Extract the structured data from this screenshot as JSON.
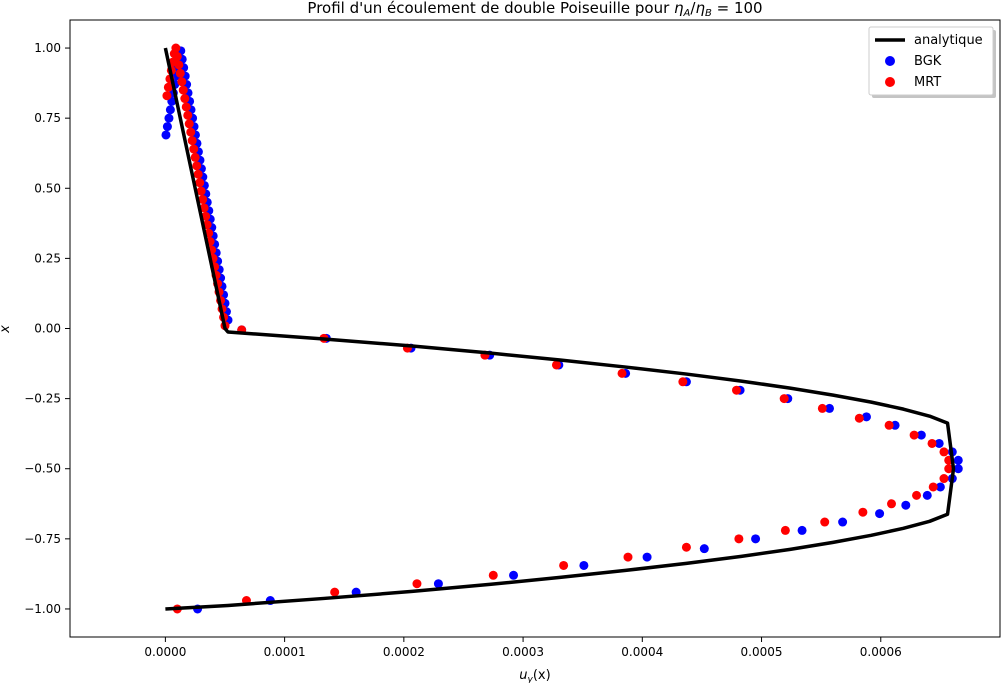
{
  "chart_data": {
    "type": "scatter",
    "title": "Profil d'un écoulement de double Poiseuille pour η_A/η_B = 100",
    "title_parts": {
      "prefix": "Profil d'un écoulement de double Poiseuille pour ",
      "eta": "η",
      "sub_a": "A",
      "slash": "/",
      "sub_b": "B",
      "suffix": " = 100"
    },
    "xlabel_parts": {
      "main": "u",
      "sub": "y",
      "suffix": "(x)"
    },
    "ylabel": "x",
    "xlim": [
      -8e-05,
      0.0007
    ],
    "ylim": [
      -1.1,
      1.1
    ],
    "xticks": [
      {
        "value": 0.0,
        "label": "0.0000"
      },
      {
        "value": 0.0001,
        "label": "0.0001"
      },
      {
        "value": 0.0002,
        "label": "0.0002"
      },
      {
        "value": 0.0003,
        "label": "0.0003"
      },
      {
        "value": 0.0004,
        "label": "0.0004"
      },
      {
        "value": 0.0005,
        "label": "0.0005"
      },
      {
        "value": 0.0006,
        "label": "0.0006"
      }
    ],
    "yticks": [
      {
        "value": 1.0,
        "label": "1.00"
      },
      {
        "value": 0.75,
        "label": "0.75"
      },
      {
        "value": 0.5,
        "label": "0.50"
      },
      {
        "value": 0.25,
        "label": "0.25"
      },
      {
        "value": 0.0,
        "label": "0.00"
      },
      {
        "value": -0.25,
        "label": "−0.25"
      },
      {
        "value": -0.5,
        "label": "−0.50"
      },
      {
        "value": -0.75,
        "label": "−0.75"
      },
      {
        "value": -1.0,
        "label": "−1.00"
      }
    ],
    "grid": false,
    "legend_position": "top-right",
    "series": [
      {
        "name": "analytique",
        "kind": "line",
        "color": "#000000",
        "x": [
          0.0,
          2.5e-05,
          5e-05,
          5.25e-05,
          0.000133,
          0.000207,
          0.000272,
          0.000331,
          0.000386,
          0.000437,
          0.000483,
          0.000524,
          0.00056,
          0.000592,
          0.000619,
          0.000641,
          0.000656,
          0.000661,
          0.000656,
          0.000641,
          0.000619,
          0.000592,
          0.00056,
          0.000524,
          0.000483,
          0.000437,
          0.000386,
          0.000331,
          0.000272,
          0.000207,
          0.000133,
          5.25e-05,
          0.0
        ],
        "y": [
          1.0,
          0.5,
          0.0,
          -0.0125,
          -0.0375,
          -0.0625,
          -0.0875,
          -0.1125,
          -0.1375,
          -0.1625,
          -0.1875,
          -0.2125,
          -0.2375,
          -0.2625,
          -0.2875,
          -0.3125,
          -0.3375,
          -0.5,
          -0.6625,
          -0.6875,
          -0.7125,
          -0.7375,
          -0.7625,
          -0.7875,
          -0.8125,
          -0.8375,
          -0.8625,
          -0.8875,
          -0.9125,
          -0.9375,
          -0.9625,
          -0.9875,
          -1.0
        ]
      },
      {
        "name": "BGK",
        "kind": "scatter",
        "color": "#0000ff",
        "x": [
          5.25e-05,
          5.12e-05,
          5e-05,
          4.88e-05,
          4.75e-05,
          4.63e-05,
          4.51e-05,
          4.38e-05,
          4.26e-05,
          4.13e-05,
          4.01e-05,
          3.89e-05,
          3.76e-05,
          3.64e-05,
          3.51e-05,
          3.39e-05,
          3.27e-05,
          3.14e-05,
          3.02e-05,
          2.9e-05,
          2.77e-05,
          2.65e-05,
          2.52e-05,
          2.4e-05,
          2.28e-05,
          2.15e-05,
          2.03e-05,
          1.9e-05,
          1.78e-05,
          1.66e-05,
          1.53e-05,
          1.41e-05,
          1.29e-05,
          1.16e-05,
          1.04e-05,
          9.1e-06,
          7.9e-06,
          6.7e-06,
          5.4e-06,
          4.2e-06,
          3e-06,
          1.7e-06,
          5e-07,
          6.4e-05,
          0.000135,
          0.000206,
          0.000272,
          0.00033,
          0.000386,
          0.000437,
          0.000482,
          0.000522,
          0.000557,
          0.000588,
          0.000612,
          0.000634,
          0.000649,
          0.00066,
          0.000665,
          0.000665,
          0.00066,
          0.00065,
          0.000639,
          0.000621,
          0.000599,
          0.000568,
          0.000534,
          0.000495,
          0.000452,
          0.000404,
          0.000351,
          0.000292,
          0.000229,
          0.00016,
          8.8e-05,
          2.7e-05
        ],
        "y": [
          0.03,
          0.06,
          0.09,
          0.12,
          0.15,
          0.18,
          0.21,
          0.24,
          0.27,
          0.3,
          0.33,
          0.36,
          0.39,
          0.42,
          0.45,
          0.48,
          0.51,
          0.54,
          0.57,
          0.6,
          0.63,
          0.66,
          0.69,
          0.72,
          0.75,
          0.78,
          0.81,
          0.84,
          0.87,
          0.9,
          0.93,
          0.96,
          0.99,
          0.96,
          0.93,
          0.9,
          0.87,
          0.84,
          0.81,
          0.78,
          0.75,
          0.72,
          0.69,
          -0.005,
          -0.035,
          -0.07,
          -0.095,
          -0.13,
          -0.16,
          -0.19,
          -0.22,
          -0.25,
          -0.285,
          -0.315,
          -0.345,
          -0.38,
          -0.41,
          -0.44,
          -0.47,
          -0.5,
          -0.535,
          -0.565,
          -0.595,
          -0.63,
          -0.66,
          -0.69,
          -0.72,
          -0.75,
          -0.785,
          -0.815,
          -0.845,
          -0.88,
          -0.91,
          -0.94,
          -0.97,
          -1.0
        ]
      },
      {
        "name": "MRT",
        "kind": "scatter",
        "color": "#ff0000",
        "x": [
          5e-05,
          4.88e-05,
          4.75e-05,
          4.63e-05,
          4.5e-05,
          4.38e-05,
          4.25e-05,
          4.13e-05,
          4e-05,
          3.88e-05,
          3.75e-05,
          3.63e-05,
          3.5e-05,
          3.38e-05,
          3.25e-05,
          3.13e-05,
          3e-05,
          2.88e-05,
          2.75e-05,
          2.63e-05,
          2.5e-05,
          2.38e-05,
          2.25e-05,
          2.13e-05,
          2e-05,
          1.88e-05,
          1.75e-05,
          1.63e-05,
          1.5e-05,
          1.38e-05,
          1.25e-05,
          1.13e-05,
          1e-05,
          8.8e-06,
          7.5e-06,
          6.3e-06,
          5e-06,
          3.8e-06,
          2.5e-06,
          1.3e-06,
          6.4e-05,
          0.000133,
          0.000203,
          0.000268,
          0.000328,
          0.000383,
          0.000434,
          0.000479,
          0.000519,
          0.000551,
          0.000582,
          0.000607,
          0.000628,
          0.000643,
          0.000653,
          0.000657,
          0.000657,
          0.000653,
          0.000644,
          0.00063,
          0.000609,
          0.000585,
          0.000553,
          0.00052,
          0.000481,
          0.000437,
          0.000388,
          0.000334,
          0.000275,
          0.000211,
          0.000142,
          6.8e-05,
          1e-05
        ],
        "y": [
          0.01,
          0.04,
          0.07,
          0.1,
          0.13,
          0.16,
          0.19,
          0.22,
          0.25,
          0.28,
          0.31,
          0.34,
          0.37,
          0.4,
          0.43,
          0.46,
          0.49,
          0.52,
          0.55,
          0.58,
          0.61,
          0.64,
          0.67,
          0.7,
          0.73,
          0.76,
          0.79,
          0.82,
          0.85,
          0.88,
          0.91,
          0.94,
          0.97,
          1.0,
          0.98,
          0.95,
          0.92,
          0.89,
          0.86,
          0.83,
          -0.005,
          -0.035,
          -0.07,
          -0.095,
          -0.13,
          -0.16,
          -0.19,
          -0.22,
          -0.25,
          -0.285,
          -0.32,
          -0.345,
          -0.38,
          -0.41,
          -0.44,
          -0.47,
          -0.5,
          -0.535,
          -0.565,
          -0.595,
          -0.625,
          -0.655,
          -0.69,
          -0.72,
          -0.75,
          -0.78,
          -0.815,
          -0.845,
          -0.88,
          -0.91,
          -0.94,
          -0.97,
          -1.0
        ]
      }
    ]
  }
}
